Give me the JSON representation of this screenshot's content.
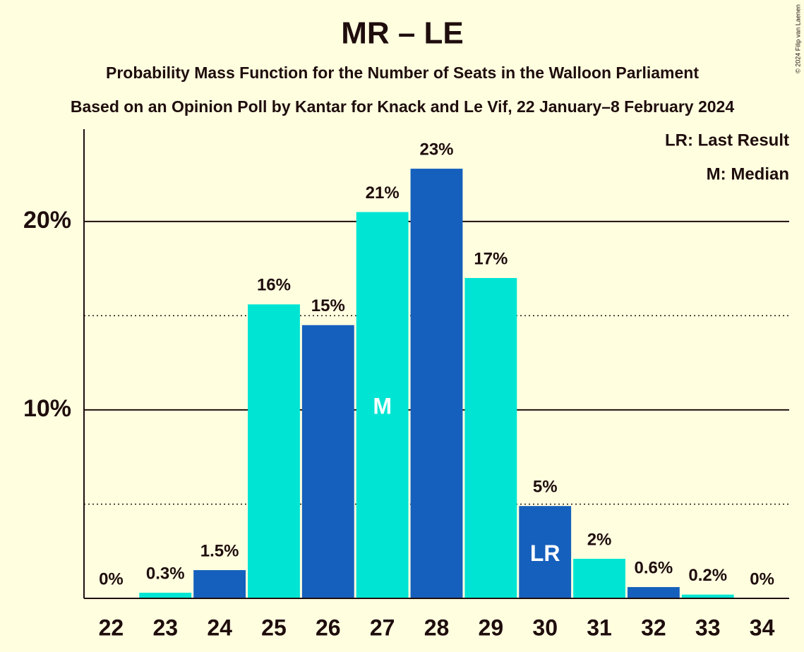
{
  "chart_data": {
    "type": "bar",
    "title": "MR – LE",
    "subtitle": "Probability Mass Function for the Number of Seats in the Walloon Parliament",
    "subtitle2": "Based on an Opinion Poll by Kantar for Knack and Le Vif, 22 January–8 February 2024",
    "copyright": "© 2024 Filip van Laenen",
    "legend_texts": [
      "LR: Last Result",
      "M: Median"
    ],
    "categories": [
      "22",
      "23",
      "24",
      "25",
      "26",
      "27",
      "28",
      "29",
      "30",
      "31",
      "32",
      "33",
      "34"
    ],
    "values": [
      0,
      0.3,
      1.5,
      15.6,
      14.5,
      20.5,
      22.8,
      17.0,
      4.9,
      2.1,
      0.6,
      0.2,
      0
    ],
    "value_labels": [
      "0%",
      "0.3%",
      "1.5%",
      "16%",
      "15%",
      "21%",
      "23%",
      "17%",
      "5%",
      "2%",
      "0.6%",
      "0.2%",
      "0%"
    ],
    "colors": [
      "#00e5d3",
      "#00e5d3",
      "#1560bd",
      "#00e5d3",
      "#1560bd",
      "#00e5d3",
      "#1560bd",
      "#00e5d3",
      "#1560bd",
      "#00e5d3",
      "#1560bd",
      "#00e5d3",
      "#1560bd"
    ],
    "bar_annotations": [
      {
        "index": 5,
        "label": "M"
      },
      {
        "index": 8,
        "label": "LR"
      }
    ],
    "ylim": [
      0,
      24.9
    ],
    "yticks": [
      {
        "value": 10,
        "label": "10%"
      },
      {
        "value": 20,
        "label": "20%"
      }
    ],
    "minor_yticks": [
      5,
      15
    ],
    "grid": true
  }
}
